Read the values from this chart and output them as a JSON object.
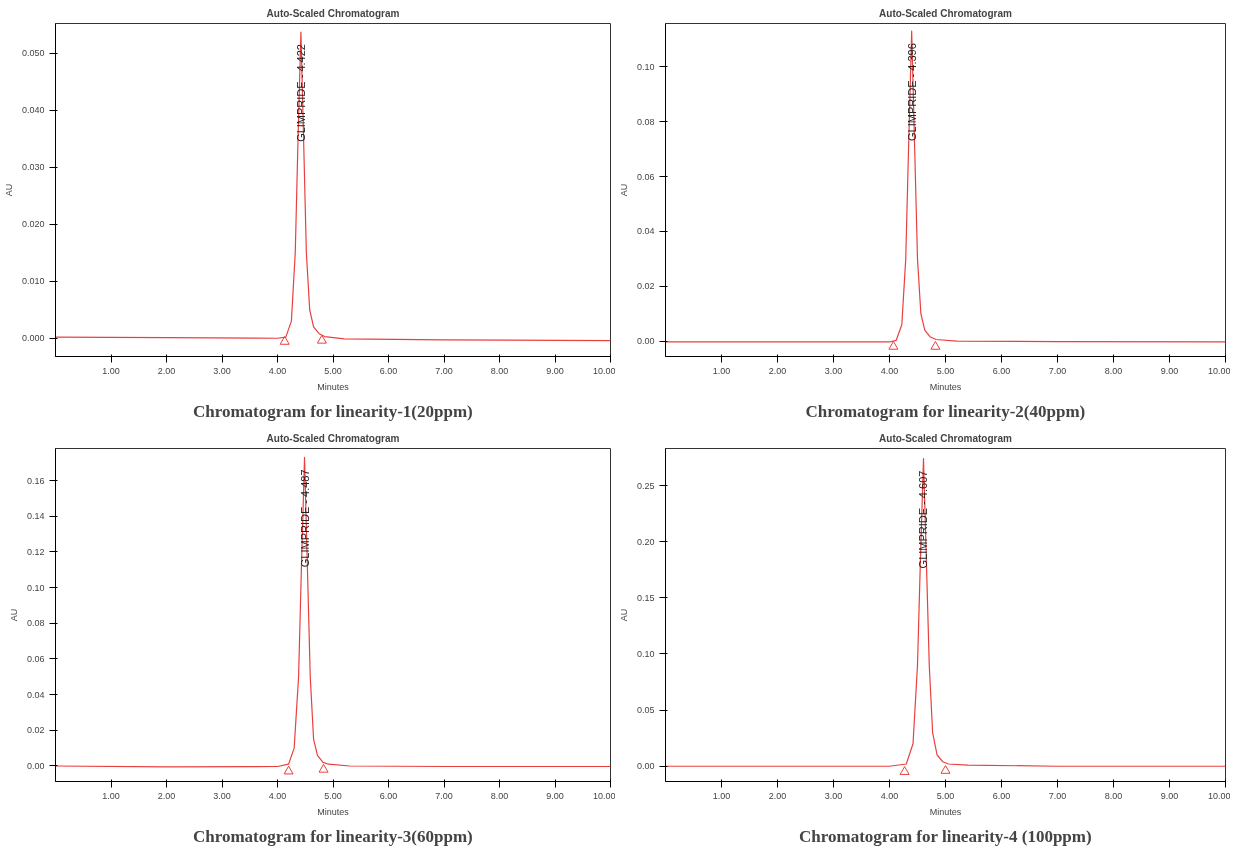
{
  "chart_data": [
    {
      "type": "line",
      "title": "Auto-Scaled Chromatogram",
      "xlabel": "Minutes",
      "ylabel": "AU",
      "xlim": [
        0,
        10
      ],
      "ylim": [
        -0.0032,
        0.0552
      ],
      "xticks": [
        {
          "value": 1,
          "label": "1.00"
        },
        {
          "value": 2,
          "label": "2.00"
        },
        {
          "value": 3,
          "label": "3.00"
        },
        {
          "value": 4,
          "label": "4.00"
        },
        {
          "value": 5,
          "label": "5.00"
        },
        {
          "value": 6,
          "label": "6.00"
        },
        {
          "value": 7,
          "label": "7.00"
        },
        {
          "value": 8,
          "label": "8.00"
        },
        {
          "value": 9,
          "label": "9.00"
        },
        {
          "value": 10,
          "label": "10.00"
        }
      ],
      "yticks": [
        {
          "value": 0,
          "label": "0.000"
        },
        {
          "value": 0.01,
          "label": "0.010"
        },
        {
          "value": 0.02,
          "label": "0.020"
        },
        {
          "value": 0.03,
          "label": "0.030"
        },
        {
          "value": 0.04,
          "label": "0.040"
        },
        {
          "value": 0.05,
          "label": "0.050"
        }
      ],
      "grid": false,
      "series": [
        {
          "color": "#e8403f",
          "x": [
            0,
            2,
            4,
            4.15,
            4.25,
            4.32,
            4.37,
            4.422,
            4.47,
            4.52,
            4.58,
            4.65,
            4.75,
            4.85,
            5.2,
            7,
            10
          ],
          "values": [
            0.0002,
            0.0001,
            0.0,
            0.0002,
            0.003,
            0.015,
            0.035,
            0.0537,
            0.035,
            0.015,
            0.005,
            0.002,
            0.0008,
            0.0003,
            -0.0001,
            -0.0003,
            -0.0004
          ]
        },
        {
          "type": "scatter",
          "marker": "triangle",
          "color": "#e8403f",
          "x": [
            4.13,
            4.8
          ],
          "values": [
            -0.0006,
            -0.0004
          ]
        }
      ],
      "annotations": [
        {
          "text": "GLIMPRIDE - 4.422",
          "x": 4.422,
          "y": 0.0537
        },
        "Chromatogram for linearity-1(20ppm)"
      ]
    },
    {
      "type": "line",
      "title": "Auto-Scaled Chromatogram",
      "xlabel": "Minutes",
      "ylabel": "AU",
      "xlim": [
        0,
        10
      ],
      "ylim": [
        -0.0056,
        0.1158
      ],
      "xticks": [
        {
          "value": 1,
          "label": "1.00"
        },
        {
          "value": 2,
          "label": "2.00"
        },
        {
          "value": 3,
          "label": "3.00"
        },
        {
          "value": 4,
          "label": "4.00"
        },
        {
          "value": 5,
          "label": "5.00"
        },
        {
          "value": 6,
          "label": "6.00"
        },
        {
          "value": 7,
          "label": "7.00"
        },
        {
          "value": 8,
          "label": "8.00"
        },
        {
          "value": 9,
          "label": "9.00"
        },
        {
          "value": 10,
          "label": "10.00"
        }
      ],
      "yticks": [
        {
          "value": 0,
          "label": "0.00"
        },
        {
          "value": 0.02,
          "label": "0.02"
        },
        {
          "value": 0.04,
          "label": "0.04"
        },
        {
          "value": 0.06,
          "label": "0.06"
        },
        {
          "value": 0.08,
          "label": "0.08"
        },
        {
          "value": 0.1,
          "label": "0.10"
        }
      ],
      "grid": false,
      "series": [
        {
          "color": "#e8403f",
          "x": [
            0,
            2,
            4,
            4.12,
            4.22,
            4.29,
            4.34,
            4.396,
            4.45,
            4.5,
            4.56,
            4.63,
            4.73,
            4.83,
            5.2,
            7,
            10
          ],
          "values": [
            -0.0003,
            -0.0003,
            -0.0003,
            0.0003,
            0.006,
            0.03,
            0.07,
            0.113,
            0.07,
            0.03,
            0.01,
            0.004,
            0.0015,
            0.0006,
            0.0,
            -0.0002,
            -0.0003
          ]
        },
        {
          "type": "scatter",
          "marker": "triangle",
          "color": "#e8403f",
          "x": [
            4.07,
            4.82
          ],
          "values": [
            -0.002,
            -0.002
          ]
        }
      ],
      "annotations": [
        {
          "text": "GLIMPRIDE - 4.396",
          "x": 4.396,
          "y": 0.113
        },
        "Chromatogram for linearity-2(40ppm)"
      ]
    },
    {
      "type": "line",
      "title": "Auto-Scaled Chromatogram",
      "xlabel": "Minutes",
      "ylabel": "AU",
      "xlim": [
        0,
        10
      ],
      "ylim": [
        -0.0087,
        0.178
      ],
      "xticks": [
        {
          "value": 1,
          "label": "1.00"
        },
        {
          "value": 2,
          "label": "2.00"
        },
        {
          "value": 3,
          "label": "3.00"
        },
        {
          "value": 4,
          "label": "4.00"
        },
        {
          "value": 5,
          "label": "5.00"
        },
        {
          "value": 6,
          "label": "6.00"
        },
        {
          "value": 7,
          "label": "7.00"
        },
        {
          "value": 8,
          "label": "8.00"
        },
        {
          "value": 9,
          "label": "9.00"
        },
        {
          "value": 10,
          "label": "10.00"
        }
      ],
      "yticks": [
        {
          "value": 0,
          "label": "0.00"
        },
        {
          "value": 0.02,
          "label": "0.02"
        },
        {
          "value": 0.04,
          "label": "0.04"
        },
        {
          "value": 0.06,
          "label": "0.06"
        },
        {
          "value": 0.08,
          "label": "0.08"
        },
        {
          "value": 0.1,
          "label": "0.10"
        },
        {
          "value": 0.12,
          "label": "0.12"
        },
        {
          "value": 0.14,
          "label": "0.14"
        },
        {
          "value": 0.16,
          "label": "0.16"
        }
      ],
      "grid": false,
      "series": [
        {
          "color": "#e8403f",
          "x": [
            0,
            2,
            4,
            4.2,
            4.3,
            4.38,
            4.43,
            4.487,
            4.54,
            4.59,
            4.65,
            4.72,
            4.82,
            4.92,
            5.3,
            7,
            10
          ],
          "values": [
            0.0,
            -0.0005,
            -0.0003,
            0.001,
            0.01,
            0.05,
            0.11,
            0.173,
            0.11,
            0.05,
            0.015,
            0.006,
            0.002,
            0.001,
            0.0,
            -0.0003,
            -0.0003
          ]
        },
        {
          "type": "scatter",
          "marker": "triangle",
          "color": "#e8403f",
          "x": [
            4.2,
            4.83
          ],
          "values": [
            -0.003,
            -0.002
          ]
        }
      ],
      "annotations": [
        {
          "text": "GLIMPRIDE - 4.487",
          "x": 4.487,
          "y": 0.173
        },
        "Chromatogram for linearity-3(60ppm)"
      ]
    },
    {
      "type": "line",
      "title": "Auto-Scaled Chromatogram",
      "xlabel": "Minutes",
      "ylabel": "AU",
      "xlim": [
        0,
        10
      ],
      "ylim": [
        -0.0136,
        0.283
      ],
      "xticks": [
        {
          "value": 1,
          "label": "1.00"
        },
        {
          "value": 2,
          "label": "2.00"
        },
        {
          "value": 3,
          "label": "3.00"
        },
        {
          "value": 4,
          "label": "4.00"
        },
        {
          "value": 5,
          "label": "5.00"
        },
        {
          "value": 6,
          "label": "6.00"
        },
        {
          "value": 7,
          "label": "7.00"
        },
        {
          "value": 8,
          "label": "8.00"
        },
        {
          "value": 9,
          "label": "9.00"
        },
        {
          "value": 10,
          "label": "10.00"
        }
      ],
      "yticks": [
        {
          "value": 0,
          "label": "0.00"
        },
        {
          "value": 0.05,
          "label": "0.05"
        },
        {
          "value": 0.1,
          "label": "0.10"
        },
        {
          "value": 0.15,
          "label": "0.15"
        },
        {
          "value": 0.2,
          "label": "0.20"
        },
        {
          "value": 0.25,
          "label": "0.25"
        }
      ],
      "grid": false,
      "series": [
        {
          "color": "#e8403f",
          "x": [
            0,
            2,
            4,
            4.3,
            4.42,
            4.5,
            4.55,
            4.607,
            4.66,
            4.71,
            4.77,
            4.85,
            4.95,
            5.05,
            5.4,
            7,
            10
          ],
          "values": [
            0.0,
            0.0,
            0.0,
            0.002,
            0.02,
            0.09,
            0.18,
            0.274,
            0.18,
            0.09,
            0.03,
            0.01,
            0.004,
            0.002,
            0.001,
            0.0,
            0.0
          ]
        },
        {
          "type": "scatter",
          "marker": "triangle",
          "color": "#e8403f",
          "x": [
            4.27,
            5.0
          ],
          "values": [
            -0.005,
            -0.004
          ]
        }
      ],
      "annotations": [
        {
          "text": "GLIMPRIDE - 4.607",
          "x": 4.607,
          "y": 0.274
        },
        "Chromatogram for linearity-4 (100ppm)"
      ]
    }
  ]
}
